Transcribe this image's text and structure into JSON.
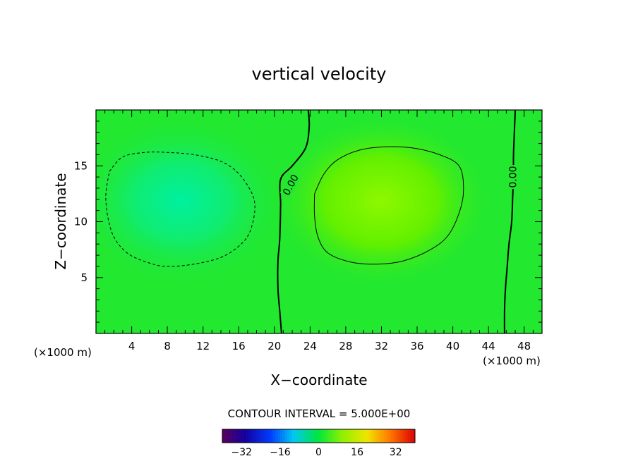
{
  "chart_data": {
    "type": "heatmap",
    "title": "vertical velocity",
    "xlabel": "X−coordinate",
    "ylabel": "Z−coordinate",
    "x_unit_left": "(×1000 m)",
    "x_unit_right": "(×1000 m)",
    "xlim": [
      0,
      50
    ],
    "ylim": [
      0,
      20
    ],
    "xticks": [
      4,
      8,
      12,
      16,
      20,
      24,
      28,
      32,
      36,
      40,
      44,
      48
    ],
    "yticks": [
      5,
      10,
      15
    ],
    "contour_interval_text": "CONTOUR INTERVAL = 5.000E+00",
    "contour_labels": [
      "0.00",
      "0.00"
    ],
    "colorbar": {
      "range": [
        -40,
        40
      ],
      "ticks": [
        -32,
        -16,
        0,
        16,
        32
      ],
      "tick_labels": [
        "−32",
        "−16",
        "0",
        "16",
        "32"
      ]
    },
    "features": [
      {
        "kind": "downdraft",
        "center_x": 9.5,
        "center_z": 12,
        "min_value": -7,
        "contour": -5
      },
      {
        "kind": "updraft",
        "center_x": 31,
        "center_z": 12,
        "max_value": 9,
        "contour": 5
      }
    ],
    "zero_contours": [
      {
        "points": [
          [
            23.8,
            20
          ],
          [
            23.9,
            18.5
          ],
          [
            23.5,
            16.6
          ],
          [
            22,
            15
          ],
          [
            20.7,
            13.8
          ],
          [
            20.7,
            11.5
          ],
          [
            20.6,
            8.5
          ],
          [
            20.4,
            6.5
          ],
          [
            20.4,
            4
          ],
          [
            20.6,
            2
          ],
          [
            20.8,
            0
          ]
        ]
      },
      {
        "points": [
          [
            47,
            20
          ],
          [
            46.9,
            18
          ],
          [
            46.8,
            16
          ],
          [
            46.8,
            14
          ],
          [
            46.7,
            12
          ],
          [
            46.6,
            10
          ],
          [
            46.3,
            8
          ],
          [
            46.1,
            6
          ],
          [
            45.9,
            4
          ],
          [
            45.8,
            2
          ],
          [
            45.8,
            0
          ]
        ]
      }
    ],
    "dashed_contours": [
      {
        "value": -5,
        "points": [
          [
            1.5,
            14.5
          ],
          [
            3,
            15.8
          ],
          [
            5.5,
            16.2
          ],
          [
            8,
            16.2
          ],
          [
            11,
            16
          ],
          [
            14,
            15.4
          ],
          [
            16,
            14.3
          ],
          [
            17.5,
            12.5
          ],
          [
            17.8,
            11
          ],
          [
            17.2,
            9
          ],
          [
            16,
            7.8
          ],
          [
            14,
            6.8
          ],
          [
            11,
            6.2
          ],
          [
            8,
            6
          ],
          [
            6,
            6.3
          ],
          [
            3.5,
            7.2
          ],
          [
            1.8,
            9
          ],
          [
            1.1,
            12
          ],
          [
            1.5,
            14.5
          ]
        ]
      }
    ],
    "solid_contours": [
      {
        "value": 5,
        "points": [
          [
            24.5,
            12.5
          ],
          [
            25.5,
            14.2
          ],
          [
            27,
            15.5
          ],
          [
            29.5,
            16.4
          ],
          [
            32.5,
            16.7
          ],
          [
            35.5,
            16.6
          ],
          [
            38.5,
            16
          ],
          [
            40.7,
            15
          ],
          [
            41.2,
            13
          ],
          [
            40.8,
            11
          ],
          [
            39.5,
            8.8
          ],
          [
            37.5,
            7.5
          ],
          [
            34.5,
            6.5
          ],
          [
            31.5,
            6.2
          ],
          [
            28.5,
            6.4
          ],
          [
            26,
            7.2
          ],
          [
            24.9,
            8.6
          ],
          [
            24.5,
            10.5
          ],
          [
            24.5,
            12.5
          ]
        ]
      }
    ]
  }
}
